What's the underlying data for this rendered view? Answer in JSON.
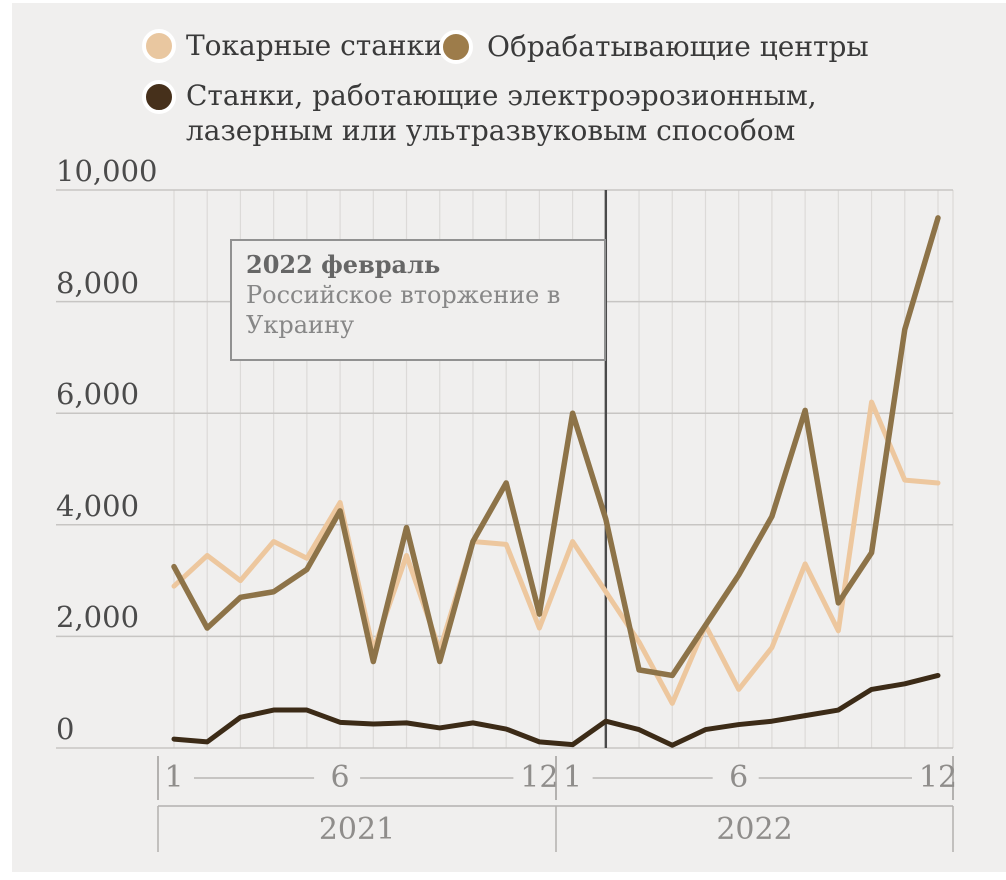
{
  "legend": {
    "series1": "Токарные станки",
    "series2": "Обрабатывающие центры",
    "series3_line1": "Станки, работающие электроэрозионным,",
    "series3_line2": "лазерным или ультразвуковым способом"
  },
  "annotation": {
    "title": "2022 февраль",
    "body": "Российское вторжение в Украину"
  },
  "colors": {
    "panel_bg": "#f0efee",
    "hgrid": "#c7c5c3",
    "vgrid": "#dcdad8",
    "axis_bracket": "#b3b1af",
    "annotation_line": "#4a4a4a",
    "series1_line": "#edc79e",
    "series2_line": "#8d7348",
    "series3_line": "#3c2b17",
    "legend_dot1": "#e9c7a0",
    "legend_dot2": "#9d7c4a",
    "legend_dot3": "#46301b"
  },
  "chart_data": {
    "type": "line",
    "x_unit": "month",
    "n_months": 24,
    "years": [
      {
        "label": "2021",
        "tick_labels": [
          "1",
          "6",
          "12"
        ],
        "tick_month_indices": [
          0,
          5,
          11
        ]
      },
      {
        "label": "2022",
        "tick_labels": [
          "1",
          "6",
          "12"
        ],
        "tick_month_indices": [
          12,
          17,
          23
        ]
      }
    ],
    "ylim": [
      0,
      10000
    ],
    "grid": true,
    "legend_position": "top",
    "yticks": [
      {
        "value": 0,
        "label": "0"
      },
      {
        "value": 2000,
        "label": "2,000"
      },
      {
        "value": 4000,
        "label": "4,000"
      },
      {
        "value": 6000,
        "label": "6,000"
      },
      {
        "value": 8000,
        "label": "8,000"
      },
      {
        "value": 10000,
        "label": "10,000"
      }
    ],
    "series": [
      {
        "name": "Токарные станки",
        "color": "#edc79e",
        "stroke_width": 5,
        "values": [
          2900,
          3450,
          3000,
          3700,
          3400,
          4400,
          1750,
          3450,
          1750,
          3700,
          3650,
          2150,
          3700,
          2800,
          1900,
          800,
          2200,
          1050,
          1800,
          3300,
          2100,
          6200,
          4800,
          4750
        ]
      },
      {
        "name": "Обрабатывающие центры",
        "color": "#8d7348",
        "stroke_width": 5.5,
        "values": [
          3250,
          2150,
          2700,
          2800,
          3200,
          4250,
          1550,
          3950,
          1550,
          3700,
          4750,
          2400,
          6000,
          4100,
          1400,
          1300,
          2200,
          3100,
          4150,
          6050,
          2600,
          3500,
          7500,
          9500
        ]
      },
      {
        "name": "Станки, работающие электроэрозионным, лазерным или ультразвуковым способом",
        "color": "#3c2b17",
        "stroke_width": 5,
        "values": [
          160,
          110,
          550,
          680,
          680,
          460,
          430,
          450,
          360,
          450,
          340,
          110,
          60,
          480,
          330,
          50,
          330,
          420,
          480,
          580,
          680,
          1050,
          1150,
          1300
        ]
      }
    ],
    "annotation_month_index": 13
  }
}
